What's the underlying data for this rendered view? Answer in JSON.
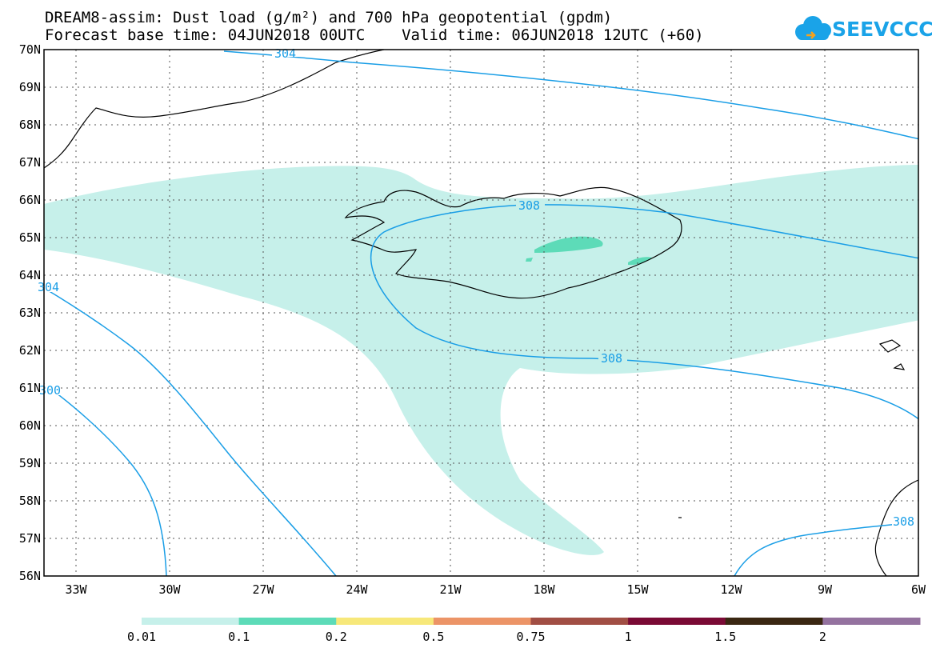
{
  "title": {
    "line1": "DREAM8-assim: Dust load (g/m²) and 700 hPa geopotential (gpdm)",
    "line2": "Forecast base time: 04JUN2018 00UTC    Valid time: 06JUN2018 12UTC (+60)"
  },
  "logo": {
    "text": "SEEVCCC",
    "icon": "cloud-icon",
    "color": "#1aa3e8"
  },
  "map": {
    "lat_labels": [
      "70N",
      "69N",
      "68N",
      "67N",
      "66N",
      "65N",
      "64N",
      "63N",
      "62N",
      "61N",
      "60N",
      "59N",
      "58N",
      "57N",
      "56N"
    ],
    "lon_labels": [
      "33W",
      "30W",
      "27W",
      "24W",
      "21W",
      "18W",
      "15W",
      "12W",
      "9W",
      "6W"
    ],
    "grid": "dotted",
    "contour_color": "#1a9ee6",
    "coast_color": "#000000"
  },
  "contours": [
    {
      "label": "304"
    },
    {
      "label": "308"
    },
    {
      "label": "308"
    },
    {
      "label": "304"
    },
    {
      "label": "300"
    },
    {
      "label": "308"
    }
  ],
  "dust": {
    "light_color": "#c6f0ea",
    "medium_color": "#5ddbb8"
  },
  "colorbar": {
    "ticks": [
      "0.01",
      "0.1",
      "0.2",
      "0.5",
      "0.75",
      "1",
      "1.5",
      "2"
    ],
    "colors": [
      "#c6f0ea",
      "#5ddbb8",
      "#f7e87a",
      "#ec9467",
      "#a14e44",
      "#7a0a35",
      "#3a2712",
      "#94729f"
    ]
  }
}
